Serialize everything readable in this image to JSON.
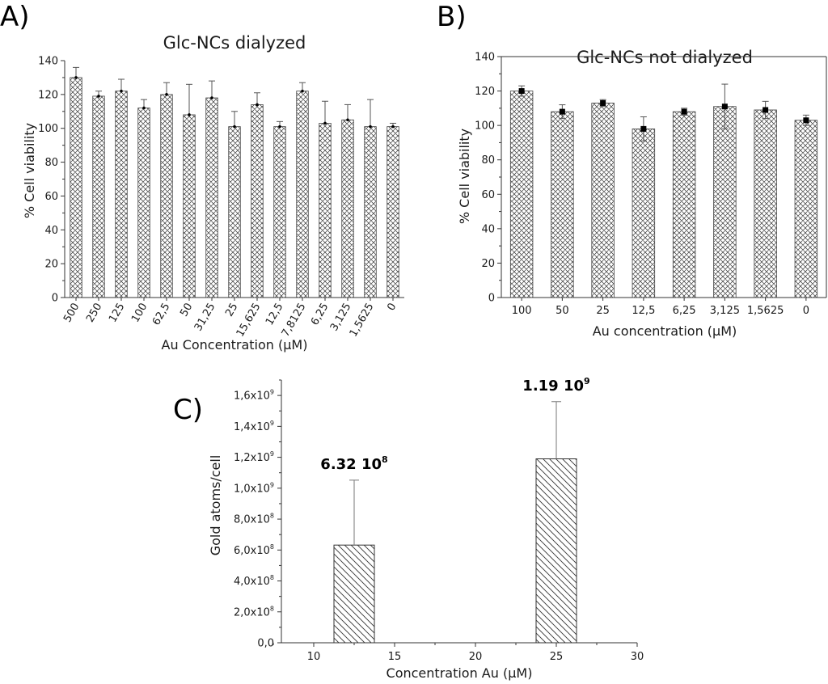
{
  "chart_data": [
    {
      "id": "A",
      "panel_label": "A)",
      "type": "bar",
      "title": "Glc-NCs dialyzed",
      "xlabel": "Au Concentration (μM)",
      "ylabel": "% Cell viability",
      "ylim": [
        0,
        140
      ],
      "yticks": [
        0,
        20,
        40,
        60,
        80,
        100,
        120,
        140
      ],
      "categories": [
        "500",
        "250",
        "125",
        "100",
        "62,5",
        "50",
        "31,25",
        "25",
        "15,625",
        "12,5",
        "7,8125",
        "6,25",
        "3,125",
        "1,5625",
        "0"
      ],
      "values": [
        130,
        119,
        122,
        112,
        120,
        108,
        118,
        101,
        114,
        101,
        122,
        103,
        105,
        101,
        101
      ],
      "errors": [
        6,
        3,
        7,
        5,
        7,
        18,
        10,
        9,
        7,
        3,
        5,
        13,
        9,
        16,
        2
      ],
      "fill": "crosshatch",
      "marker": "dot"
    },
    {
      "id": "B",
      "panel_label": "B)",
      "type": "bar",
      "title": "Glc-NCs not dialyzed",
      "xlabel": "Au concentration (μM)",
      "ylabel": "% Cell viability",
      "ylim": [
        0,
        140
      ],
      "yticks": [
        0,
        20,
        40,
        60,
        80,
        100,
        120,
        140
      ],
      "categories": [
        "100",
        "50",
        "25",
        "12,5",
        "6,25",
        "3,125",
        "1,5625",
        "0"
      ],
      "values": [
        120,
        108,
        113,
        98,
        108,
        111,
        109,
        103
      ],
      "errors": [
        3,
        4,
        2,
        7,
        2,
        13,
        5,
        3
      ],
      "fill": "crosshatch",
      "marker": "square"
    },
    {
      "id": "C",
      "panel_label": "C)",
      "type": "bar",
      "title": "",
      "xlabel": "Concentration Au (μM)",
      "ylabel": "Gold atoms/cell",
      "xlim": [
        8,
        30
      ],
      "xticks": [
        10,
        15,
        20,
        25,
        30
      ],
      "ylim": [
        0,
        1700000000.0
      ],
      "yticks": [
        {
          "value": 0,
          "mant": "0,0",
          "exp": ""
        },
        {
          "value": 200000000.0,
          "mant": "2,0x10",
          "exp": "8"
        },
        {
          "value": 400000000.0,
          "mant": "4,0x10",
          "exp": "8"
        },
        {
          "value": 600000000.0,
          "mant": "6,0x10",
          "exp": "8"
        },
        {
          "value": 800000000.0,
          "mant": "8,0x10",
          "exp": "8"
        },
        {
          "value": 1000000000.0,
          "mant": "1,0x10",
          "exp": "9"
        },
        {
          "value": 1200000000.0,
          "mant": "1,2x10",
          "exp": "9"
        },
        {
          "value": 1400000000.0,
          "mant": "1,4x10",
          "exp": "9"
        },
        {
          "value": 1600000000.0,
          "mant": "1,6x10",
          "exp": "9"
        }
      ],
      "x": [
        12.5,
        25
      ],
      "values": [
        632000000.0,
        1190000000.0
      ],
      "errors": [
        420000000.0,
        370000000.0
      ],
      "bar_width": 2.5,
      "fill": "diagonal",
      "annotations": [
        {
          "base": "6.32 10",
          "exp": "8"
        },
        {
          "base": "1.19 10",
          "exp": "9"
        }
      ]
    }
  ]
}
